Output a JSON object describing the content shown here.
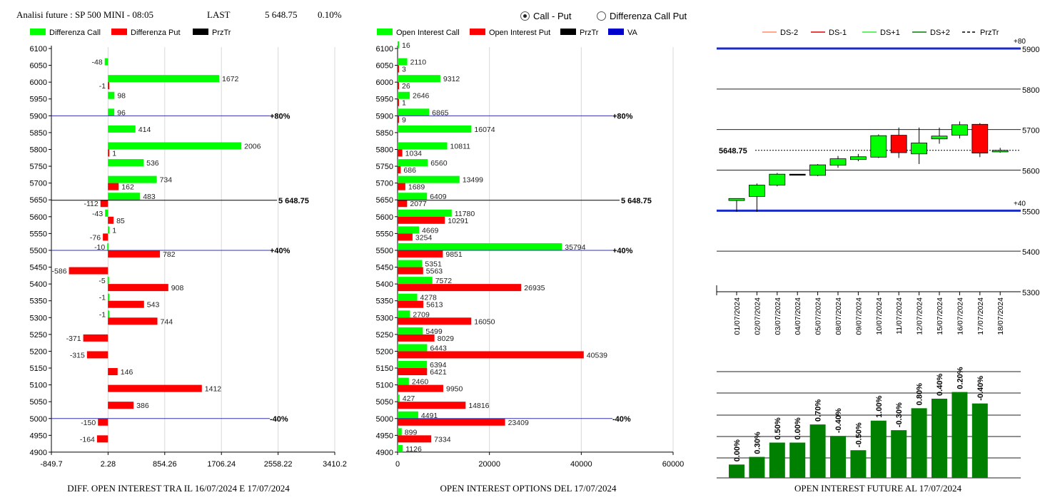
{
  "header": {
    "title": "Analisi future : SP 500 MINI - 08:05",
    "last_label": "LAST",
    "last_value": "5 648.75",
    "change": "0.10%"
  },
  "toggle": {
    "options": [
      "Call - Put",
      "Differenza Call Put"
    ],
    "selected": "Call - Put"
  },
  "colors": {
    "call": "#00ff00",
    "put": "#ff0000",
    "przTr": "#000000",
    "va": "#0000cc",
    "bar_green": "#008000"
  },
  "chart_data": [
    {
      "type": "bar",
      "orientation": "horizontal",
      "legend": [
        "Differenza Call",
        "Differenza Put",
        "PrzTr"
      ],
      "categories": [
        "6100",
        "6050",
        "6000",
        "5950",
        "5900",
        "5850",
        "5800",
        "5750",
        "5700",
        "5650",
        "5600",
        "5550",
        "5500",
        "5450",
        "5400",
        "5350",
        "5300",
        "5250",
        "5200",
        "5150",
        "5100",
        "5050",
        "5000",
        "4950",
        "4900"
      ],
      "series": [
        {
          "name": "Differenza Call",
          "values": [
            null,
            -48,
            1672,
            98,
            96,
            414,
            2006,
            536,
            734,
            483,
            -43,
            1,
            -10,
            null,
            -5,
            -1,
            -1,
            null,
            null,
            null,
            null,
            null,
            null,
            null,
            null
          ]
        },
        {
          "name": "Differenza Put",
          "values": [
            null,
            null,
            -1,
            null,
            null,
            null,
            1,
            null,
            162,
            -112,
            85,
            -76,
            782,
            -586,
            908,
            543,
            744,
            -371,
            -315,
            146,
            1412,
            386,
            -150,
            -164,
            null
          ]
        }
      ],
      "x_ticks": [
        "-849.7",
        "2.28",
        "854.26",
        "1706.24",
        "2558.22",
        "3410.2"
      ],
      "xlim": [
        -849.7,
        3410.2
      ],
      "lines": [
        {
          "level": "5900",
          "label": "+80%"
        },
        {
          "level": "5500",
          "label": "+40%"
        },
        {
          "level": "5000",
          "label": "-40%"
        }
      ],
      "price_line": {
        "value": 5648.75,
        "label": "5 648.75"
      },
      "footer": "DIFF. OPEN INTEREST TRA IL 16/07/2024 E 17/07/2024"
    },
    {
      "type": "bar",
      "orientation": "horizontal",
      "legend": [
        "Open Interest Call",
        "Open Interest Put",
        "PrzTr",
        "VA"
      ],
      "categories": [
        "6100",
        "6050",
        "6000",
        "5950",
        "5900",
        "5850",
        "5800",
        "5750",
        "5700",
        "5650",
        "5600",
        "5550",
        "5500",
        "5450",
        "5400",
        "5350",
        "5300",
        "5250",
        "5200",
        "5150",
        "5100",
        "5050",
        "5000",
        "4950",
        "4900"
      ],
      "series": [
        {
          "name": "Open Interest Call",
          "values": [
            16,
            2110,
            9312,
            2646,
            6865,
            16074,
            10811,
            6560,
            13499,
            6409,
            11780,
            4669,
            35794,
            5351,
            7572,
            4278,
            2709,
            5499,
            6443,
            6394,
            2460,
            427,
            4491,
            899,
            1126
          ]
        },
        {
          "name": "Open Interest Put",
          "values": [
            null,
            3,
            26,
            1,
            9,
            null,
            1034,
            686,
            1689,
            2077,
            10291,
            3254,
            9851,
            5563,
            26935,
            5613,
            16050,
            8029,
            40539,
            6421,
            9950,
            14816,
            23409,
            7334,
            null
          ]
        }
      ],
      "x_ticks": [
        "0",
        "20000",
        "40000",
        "60000"
      ],
      "xlim": [
        0,
        60000
      ],
      "lines": [
        {
          "level": "5900",
          "label": "+80%"
        },
        {
          "level": "5500",
          "label": "+40%"
        },
        {
          "level": "5000",
          "label": "-40%"
        }
      ],
      "price_line": {
        "value": 5648.75,
        "label": "5 648.75"
      },
      "footer": "OPEN INTEREST OPTIONS DEL 17/07/2024"
    },
    {
      "type": "candlestick",
      "legend": [
        "DS-2",
        "DS-1",
        "DS+1",
        "DS+2",
        "PrzTr"
      ],
      "x": [
        "01/07/2024",
        "02/07/2024",
        "03/07/2024",
        "04/07/2024",
        "05/07/2024",
        "08/07/2024",
        "09/07/2024",
        "10/07/2024",
        "11/07/2024",
        "12/07/2024",
        "15/07/2024",
        "16/07/2024",
        "17/07/2024",
        "18/07/2024"
      ],
      "candles": [
        {
          "open": 5525,
          "close": 5530,
          "high": 5530,
          "low": 5497
        },
        {
          "open": 5535,
          "close": 5563,
          "high": 5567,
          "low": 5497
        },
        {
          "open": 5563,
          "close": 5590,
          "high": 5593,
          "low": 5560
        },
        {
          "open": 5590,
          "close": 5590,
          "high": 5590,
          "low": 5590
        },
        {
          "open": 5587,
          "close": 5613,
          "high": 5615,
          "low": 5585
        },
        {
          "open": 5612,
          "close": 5628,
          "high": 5635,
          "low": 5606
        },
        {
          "open": 5626,
          "close": 5633,
          "high": 5640,
          "low": 5622
        },
        {
          "open": 5632,
          "close": 5685,
          "high": 5688,
          "low": 5630
        },
        {
          "open": 5686,
          "close": 5643,
          "high": 5705,
          "low": 5630
        },
        {
          "open": 5640,
          "close": 5667,
          "high": 5705,
          "low": 5615
        },
        {
          "open": 5677,
          "close": 5684,
          "high": 5705,
          "low": 5665
        },
        {
          "open": 5686,
          "close": 5712,
          "high": 5720,
          "low": 5678
        },
        {
          "open": 5713,
          "close": 5642,
          "high": 5716,
          "low": 5632
        },
        {
          "open": 5645,
          "close": 5648.75,
          "high": 5655,
          "low": 5643
        }
      ],
      "y_ticks": [
        "5900",
        "5800",
        "5700",
        "5600",
        "5500",
        "5400",
        "5300"
      ],
      "ylim": [
        5300,
        5900
      ],
      "price_line": {
        "value": 5648.75,
        "label": "5648.75"
      },
      "lines": [
        {
          "level": 5900,
          "label": "+80"
        },
        {
          "level": 5500,
          "label": "+40"
        }
      ]
    },
    {
      "type": "bar",
      "values_pct": [
        0.0,
        0.3,
        0.5,
        0.0,
        0.7,
        -0.4,
        -0.5,
        1.0,
        -0.3,
        0.8,
        0.4,
        0.2,
        -0.4
      ],
      "labels": [
        "0.00%",
        "0.30%",
        "0.50%",
        "0.00%",
        "0.70%",
        "-0.40%",
        "-0.50%",
        "1.00%",
        "-0.30%",
        "0.80%",
        "0.40%",
        "0.20%",
        "-0.40%"
      ],
      "relative_height": [
        0.14,
        0.22,
        0.37,
        0.37,
        0.56,
        0.44,
        0.29,
        0.6,
        0.5,
        0.73,
        0.83,
        0.9,
        0.78
      ],
      "footer": "OPEN INTEREST FUTURE AL 17/07/2024"
    }
  ]
}
